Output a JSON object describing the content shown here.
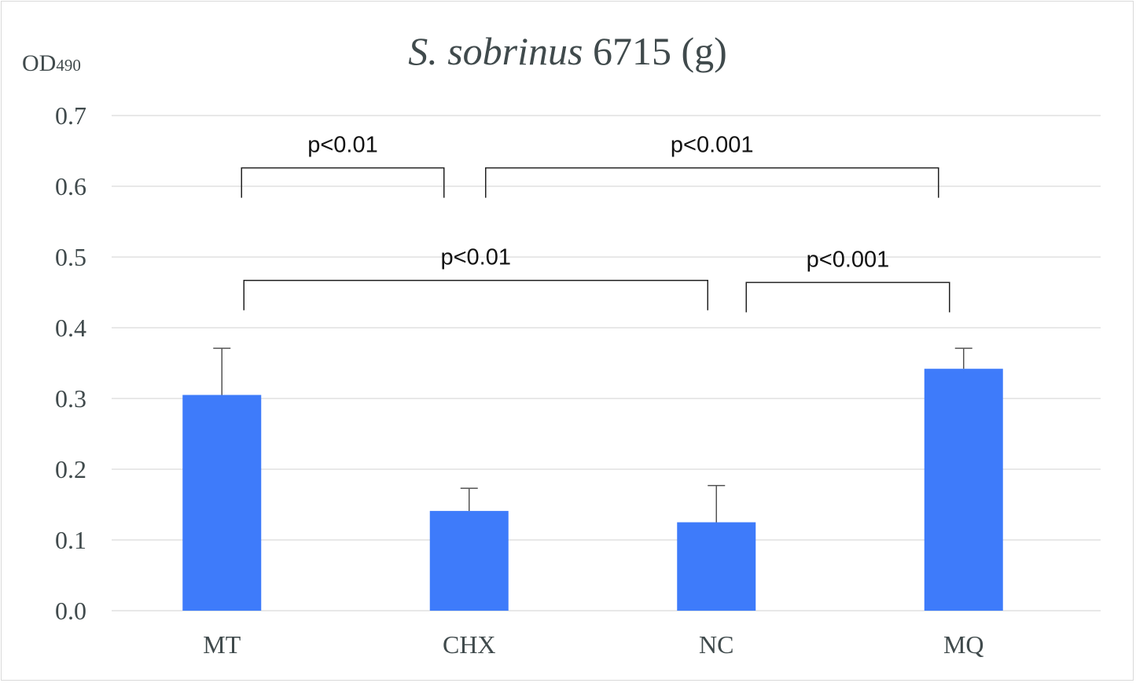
{
  "chart_data": {
    "type": "bar",
    "title": {
      "italic_part": "S. sobrinus",
      "plain_part": " 6715 (g)"
    },
    "ylabel": {
      "main": "OD",
      "subscript": "490"
    },
    "xlabel": "",
    "ylim": [
      0,
      0.7
    ],
    "yticks": [
      "0.0",
      "0.1",
      "0.2",
      "0.3",
      "0.4",
      "0.5",
      "0.6",
      "0.7"
    ],
    "grid": true,
    "categories": [
      "MT",
      "CHX",
      "NC",
      "MQ"
    ],
    "values": [
      0.305,
      0.141,
      0.125,
      0.342
    ],
    "error_upper": [
      0.371,
      0.173,
      0.177,
      0.371
    ],
    "bar_color": "#3e7bfa",
    "annotations": [
      {
        "label": "p<0.01",
        "from": "MT",
        "to": "CHX",
        "level": 0.626
      },
      {
        "label": "p<0.001",
        "from": "CHX",
        "to": "MQ",
        "level": 0.626
      },
      {
        "label": "p<0.01",
        "from": "MT",
        "to": "NC",
        "level": 0.467
      },
      {
        "label": "p<0.001",
        "from": "NC",
        "to": "MQ",
        "level": 0.464
      }
    ]
  }
}
